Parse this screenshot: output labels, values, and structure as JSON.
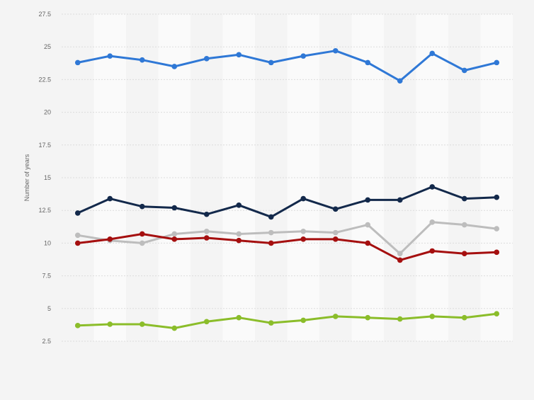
{
  "chart_data": {
    "type": "line",
    "title": "",
    "xlabel": "",
    "ylabel": "Number of years",
    "ylim": [
      2.5,
      27.5
    ],
    "yticks": [
      2.5,
      5,
      7.5,
      10,
      12.5,
      15,
      17.5,
      20,
      22.5,
      25,
      27.5
    ],
    "ytick_labels": [
      "2.5",
      "5",
      "7.5",
      "10",
      "12.5",
      "15",
      "17.5",
      "20",
      "22.5",
      "25",
      "27.5"
    ],
    "grid": true,
    "legend": "none",
    "x_count": 14,
    "series": [
      {
        "color": "#2f78d6",
        "values": [
          23.8,
          24.3,
          24.0,
          23.5,
          24.1,
          24.4,
          23.8,
          24.3,
          24.7,
          23.8,
          22.4,
          24.5,
          23.2,
          23.8
        ]
      },
      {
        "color": "#13294b",
        "values": [
          12.3,
          13.4,
          12.8,
          12.7,
          12.2,
          12.9,
          12.0,
          13.4,
          12.6,
          13.3,
          13.3,
          14.3,
          13.4,
          13.5
        ]
      },
      {
        "color": "#bdbdbd",
        "values": [
          10.6,
          10.2,
          10.0,
          10.7,
          10.9,
          10.7,
          10.8,
          10.9,
          10.8,
          11.4,
          9.2,
          11.6,
          11.4,
          11.1
        ]
      },
      {
        "color": "#a50f0f",
        "values": [
          10.0,
          10.3,
          10.7,
          10.3,
          10.4,
          10.2,
          10.0,
          10.3,
          10.3,
          10.0,
          8.7,
          9.4,
          9.2,
          9.3
        ]
      },
      {
        "color": "#8bbd2a",
        "values": [
          3.7,
          3.8,
          3.8,
          3.5,
          4.0,
          4.3,
          3.9,
          4.1,
          4.4,
          4.3,
          4.2,
          4.4,
          4.3,
          4.6
        ]
      }
    ]
  }
}
